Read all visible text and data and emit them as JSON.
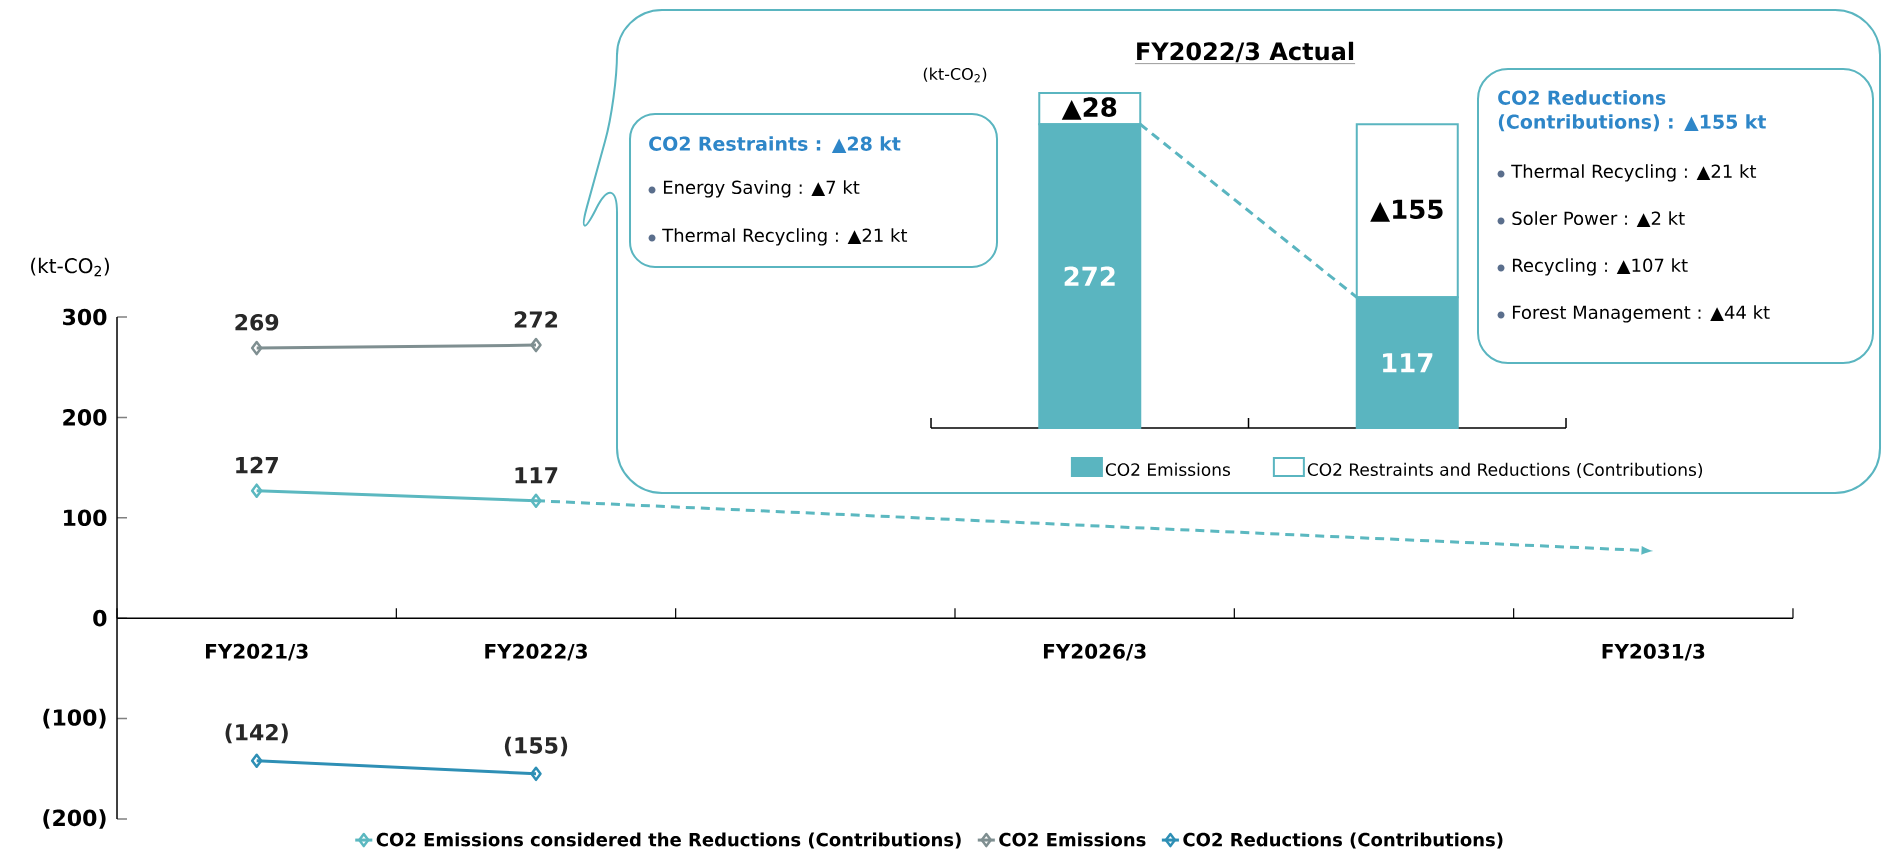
{
  "chart_data": [
    {
      "type": "line",
      "categories": [
        "FY2021/3",
        "FY2022/3",
        null,
        "FY2026/3",
        null,
        "FY2031/3"
      ],
      "ylabel": "(kt-CO$_{2}$)",
      "ylim": [
        -200,
        300
      ],
      "yticks": [
        {
          "value": -200,
          "label": "(200)"
        },
        {
          "value": -100,
          "label": "(100)"
        },
        0,
        100,
        200,
        300
      ],
      "marker": "diamond",
      "legend": "bottom",
      "series": [
        {
          "name": "CO2 Emissions considered the Reductions (Contributions)",
          "color": "#5bb8c0",
          "values": [
            127,
            117,
            null,
            null,
            null,
            null
          ],
          "value_labels": [
            "127",
            "117",
            null,
            null,
            null,
            null
          ]
        },
        {
          "name": "CO2 Emissions",
          "color": "#7f8f91",
          "values": [
            269,
            272,
            null,
            null,
            null,
            null
          ],
          "value_labels": [
            "269",
            "272",
            null,
            null,
            null,
            null
          ]
        },
        {
          "name": "CO2 Reductions (Contributions)",
          "color": "#2e8fb5",
          "values": [
            -142,
            -155,
            null,
            null,
            null,
            null
          ],
          "value_labels": [
            "(142)",
            "(155)",
            null,
            null,
            null,
            null
          ]
        },
        {
          "color": "#5bb8c0",
          "values": [
            null,
            117,
            null,
            null,
            null,
            67
          ],
          "line_style": "dashed",
          "marker": "none"
        }
      ]
    },
    {
      "type": "bar",
      "title": "FY2022/3 Actual",
      "ylabel": "(kt-CO$_{2}$)",
      "categories": [
        null,
        null
      ],
      "stacked": true,
      "legend": "bottom",
      "series": [
        {
          "name": "CO2 Emissions",
          "color": "#5ab5c0",
          "values": [
            272,
            117
          ],
          "value_labels": [
            "272",
            "117"
          ]
        },
        {
          "name": "CO2 Restraints and Reductions (Contributions)",
          "color": "#ffffff",
          "values": [
            28,
            155
          ],
          "value_labels": [
            "▲28",
            "▲155"
          ]
        }
      ],
      "annotations": [
        "CO2 Restraints : ▲28 kt",
        "Energy Saving : ▲7 kt",
        "Thermal Recycling : ▲21 kt",
        "CO2 Reductions (Contributions) : ▲155 kt",
        "Thermal Recycling  : ▲21 kt",
        "Soler Power : ▲2 kt",
        "Recycling : ▲107 kt",
        "Forest Management : ▲44 kt"
      ]
    }
  ]
}
